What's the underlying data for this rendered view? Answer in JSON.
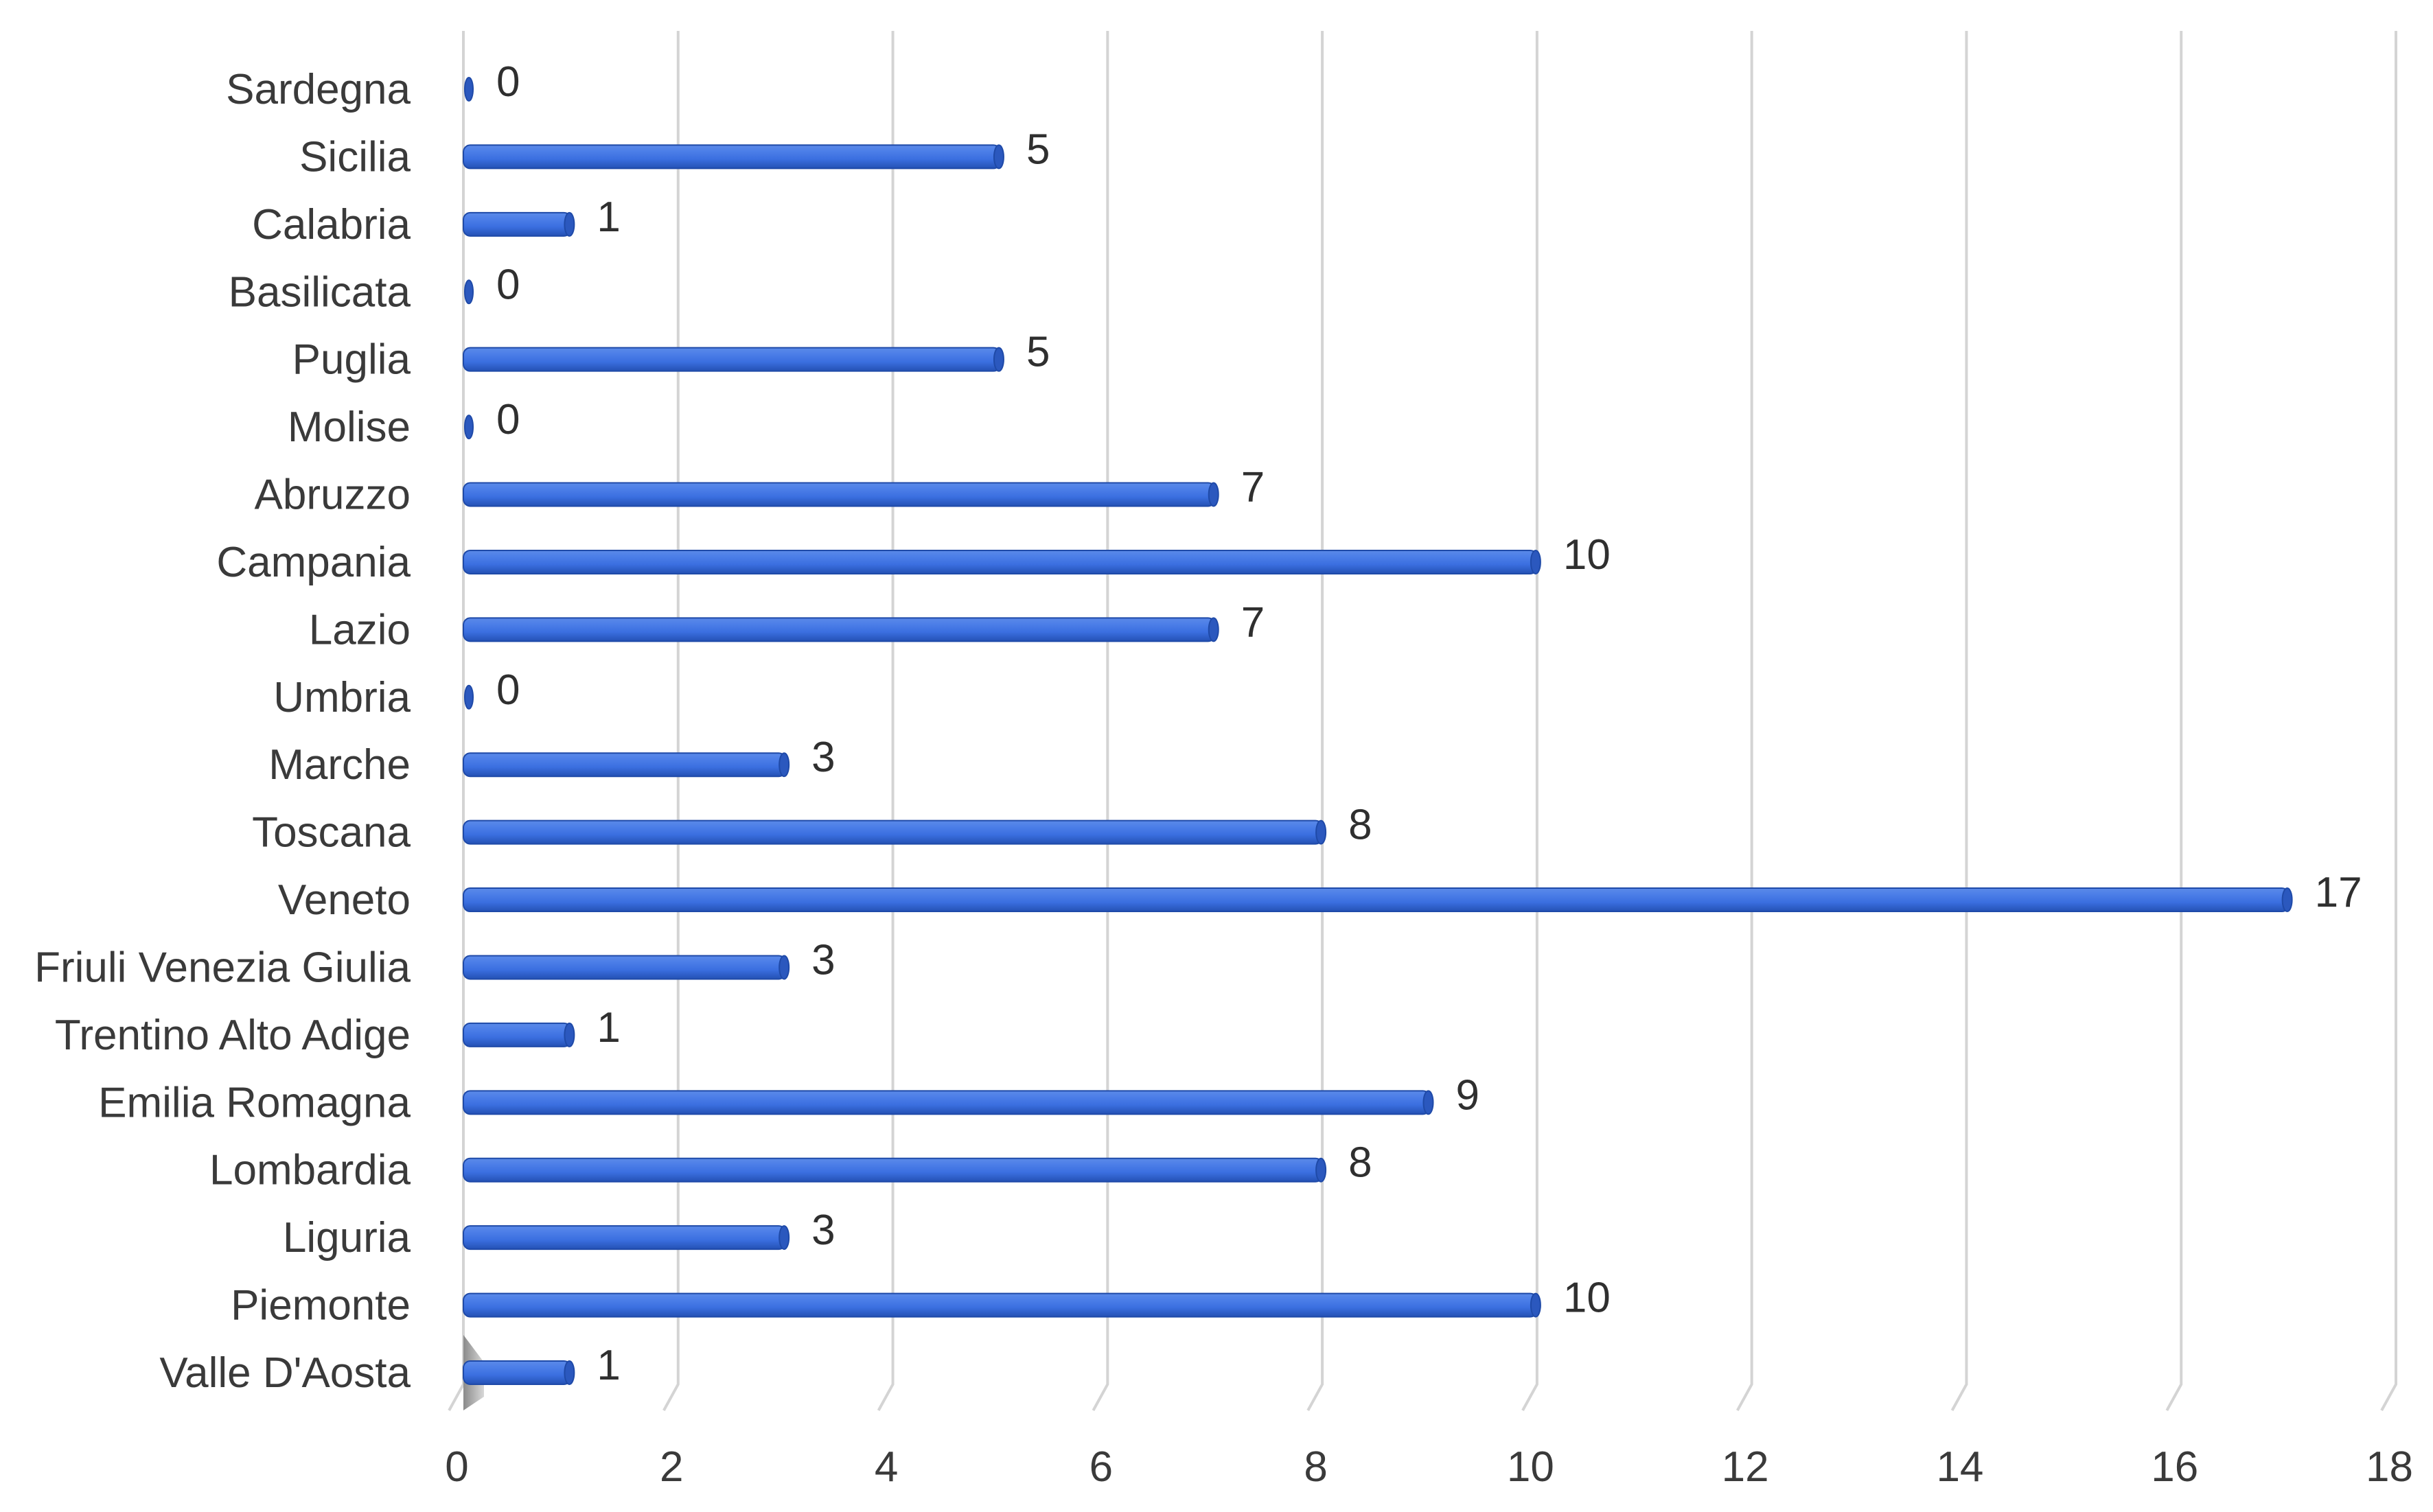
{
  "chart_data": {
    "type": "bar",
    "orientation": "horizontal",
    "style": "3d-cylinder",
    "categories": [
      "Valle D'Aosta",
      "Piemonte",
      "Liguria",
      "Lombardia",
      "Emilia Romagna",
      "Trentino Alto Adige",
      "Friuli Venezia Giulia",
      "Veneto",
      "Toscana",
      "Marche",
      "Umbria",
      "Lazio",
      "Campania",
      "Abruzzo",
      "Molise",
      "Puglia",
      "Basilicata",
      "Calabria",
      "Sicilia",
      "Sardegna"
    ],
    "values": [
      1,
      10,
      3,
      8,
      9,
      1,
      3,
      17,
      8,
      3,
      0,
      7,
      10,
      7,
      0,
      5,
      0,
      1,
      5,
      0
    ],
    "data_labels": true,
    "xlim": [
      0,
      18
    ],
    "xticks": [
      0,
      2,
      4,
      6,
      8,
      10,
      12,
      14,
      16,
      18
    ],
    "grid": "vertical",
    "legend": "none",
    "colors": {
      "bar": "#3b6fe0",
      "bar_dark": "#1f4aa8",
      "bar_light": "#6f98f0",
      "grid": "#d4d4d4",
      "text": "#3a3a3a"
    }
  }
}
